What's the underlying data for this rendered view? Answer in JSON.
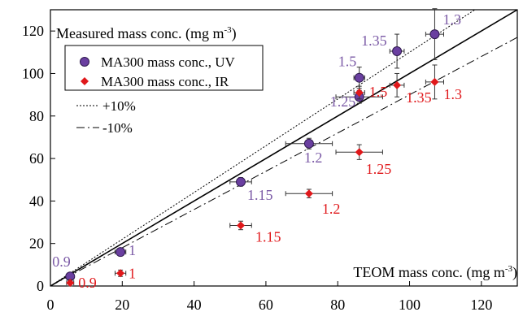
{
  "chart_data": {
    "type": "scatter",
    "title": "",
    "xlabel": "TEOM mass conc.",
    "xunit": "(mg m",
    "xunit_sup": "-3",
    "xunit_close": ")",
    "ylabel": "Measured mass conc.",
    "yunit": "(mg m",
    "yunit_sup": "-3",
    "yunit_close": ")",
    "xlim": [
      0,
      130
    ],
    "ylim": [
      0,
      130
    ],
    "xticks": [
      0,
      20,
      40,
      60,
      80,
      100,
      120
    ],
    "yticks": [
      0,
      20,
      40,
      60,
      80,
      100,
      120
    ],
    "grid": false,
    "legend_position": "top-left",
    "series": [
      {
        "name": "MA300 mass conc., UV",
        "marker": "circle",
        "color": "#6a3fa0",
        "label_color": "#7b5aa6",
        "points": [
          {
            "x": 5.5,
            "y": 4.5,
            "xerr": 1.0,
            "yerr": 1.5,
            "label": "0.9"
          },
          {
            "x": 19.5,
            "y": 16.0,
            "xerr": 1.5,
            "yerr": 1.5,
            "label": "1"
          },
          {
            "x": 53.0,
            "y": 49.0,
            "xerr": 3.0,
            "yerr": 2.0,
            "label": "1.15"
          },
          {
            "x": 72.0,
            "y": 67.0,
            "xerr": 6.5,
            "yerr": 2.5,
            "label": "1.2"
          },
          {
            "x": 86.0,
            "y": 89.0,
            "xerr": 6.5,
            "yerr": 3.0,
            "label": "1.25"
          },
          {
            "x": 86.0,
            "y": 98.0,
            "xerr": 1.5,
            "yerr": 5.0,
            "label": "1.5"
          },
          {
            "x": 96.5,
            "y": 110.5,
            "xerr": 2.0,
            "yerr": 8.0,
            "label": "1.35"
          },
          {
            "x": 107.0,
            "y": 118.5,
            "xerr": 2.5,
            "yerr": 12.0,
            "label": "1.3"
          }
        ]
      },
      {
        "name": "MA300 mass conc., IR",
        "marker": "diamond",
        "color": "#e0181b",
        "label_color": "#e0181b",
        "points": [
          {
            "x": 5.5,
            "y": 1.5,
            "xerr": 1.0,
            "yerr": 1.5,
            "label": "0.9"
          },
          {
            "x": 19.5,
            "y": 6.0,
            "xerr": 1.5,
            "yerr": 1.5,
            "label": "1"
          },
          {
            "x": 53.0,
            "y": 28.5,
            "xerr": 3.0,
            "yerr": 2.0,
            "label": "1.15"
          },
          {
            "x": 72.0,
            "y": 43.5,
            "xerr": 6.5,
            "yerr": 2.0,
            "label": "1.2"
          },
          {
            "x": 86.0,
            "y": 63.0,
            "xerr": 6.5,
            "yerr": 3.5,
            "label": "1.25"
          },
          {
            "x": 86.0,
            "y": 91.0,
            "xerr": 1.5,
            "yerr": 3.0,
            "label": "1.5"
          },
          {
            "x": 96.5,
            "y": 94.5,
            "xerr": 2.0,
            "yerr": 5.5,
            "label": "1.35"
          },
          {
            "x": 107.0,
            "y": 96.0,
            "xerr": 2.5,
            "yerr": 8.0,
            "label": "1.3"
          }
        ]
      }
    ],
    "reference_lines": [
      {
        "name": "+10%",
        "slope": 1.1,
        "style": "dotted"
      },
      {
        "name": "-10%",
        "slope": 0.9,
        "style": "dashed"
      },
      {
        "name": "",
        "slope": 1.0,
        "style": "solid"
      }
    ],
    "legend_entries": [
      "MA300 mass conc., UV",
      "MA300 mass conc., IR",
      "+10%",
      "-10%"
    ]
  }
}
